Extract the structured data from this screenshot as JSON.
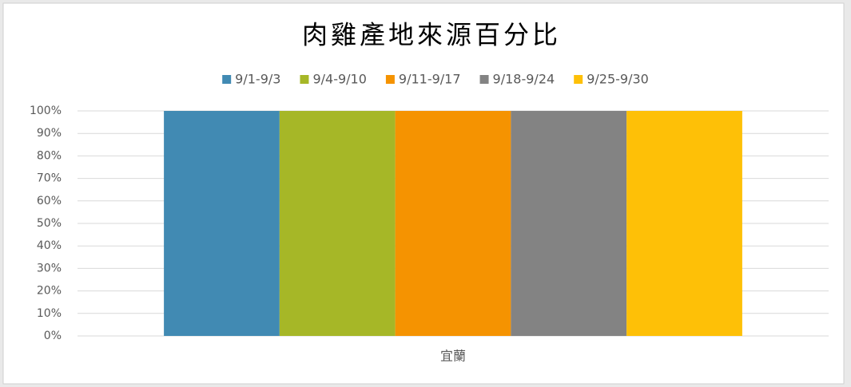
{
  "chart_data": {
    "type": "bar",
    "title": "肉雞產地來源百分比",
    "categories": [
      "宜蘭"
    ],
    "series": [
      {
        "name": "9/1-9/3",
        "color": "#418ab3",
        "values": [
          100
        ]
      },
      {
        "name": "9/4-9/10",
        "color": "#a6b727",
        "values": [
          100
        ]
      },
      {
        "name": "9/11-9/17",
        "color": "#f59301",
        "values": [
          100
        ]
      },
      {
        "name": "9/18-9/24",
        "color": "#838383",
        "values": [
          100
        ]
      },
      {
        "name": "9/25-9/30",
        "color": "#fec007",
        "values": [
          100
        ]
      }
    ],
    "ylim": [
      0,
      100
    ],
    "yticks": [
      {
        "value": 0,
        "label": "0%"
      },
      {
        "value": 10,
        "label": "10%"
      },
      {
        "value": 20,
        "label": "20%"
      },
      {
        "value": 30,
        "label": "30%"
      },
      {
        "value": 40,
        "label": "40%"
      },
      {
        "value": 50,
        "label": "50%"
      },
      {
        "value": 60,
        "label": "60%"
      },
      {
        "value": 70,
        "label": "70%"
      },
      {
        "value": 80,
        "label": "80%"
      },
      {
        "value": 90,
        "label": "90%"
      },
      {
        "value": 100,
        "label": "100%"
      }
    ],
    "grid": true,
    "legend": "top"
  }
}
